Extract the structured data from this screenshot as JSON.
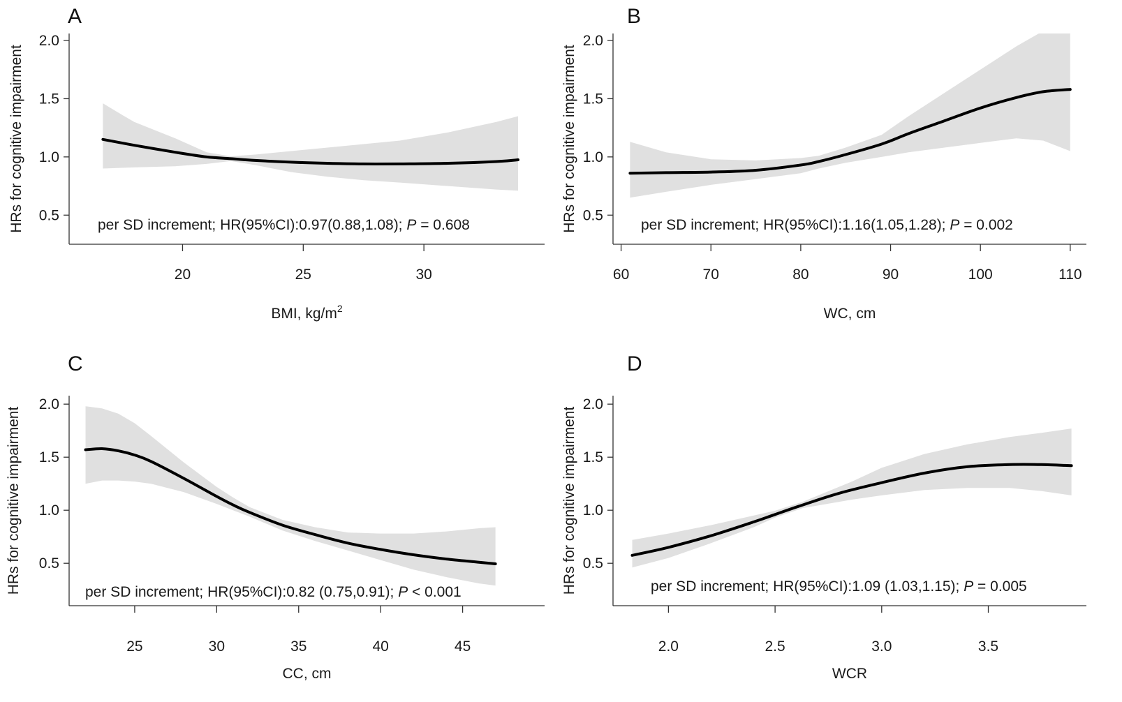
{
  "chart_data": [
    {
      "type": "line",
      "panel": "A",
      "title": "",
      "xlabel": "BMI, kg/m",
      "xlabel_superscript": "2",
      "ylabel": "HRs for cognitive impairment",
      "xticks": [
        20,
        25,
        30
      ],
      "yticks": [
        0.5,
        1.0,
        1.5,
        2.0
      ],
      "xlim": [
        15.3,
        35.0
      ],
      "ylim": [
        0.25,
        2.06
      ],
      "grid": false,
      "annotation": {
        "prefix": "per SD increment; HR(95%CI):0.97(0.88,1.08); ",
        "p_label": "P",
        "p_value": " = 0.608"
      },
      "series": [
        {
          "name": "HR",
          "x": [
            16.7,
            18,
            19.7,
            21,
            22,
            23,
            24.5,
            26,
            27.5,
            29,
            31,
            33,
            33.9
          ],
          "values": [
            1.15,
            1.1,
            1.04,
            1.0,
            0.985,
            0.97,
            0.955,
            0.945,
            0.94,
            0.94,
            0.945,
            0.96,
            0.975
          ]
        },
        {
          "name": "CI lower",
          "x": [
            16.7,
            18,
            19.7,
            21,
            22,
            23,
            24.5,
            26,
            27.5,
            29,
            31,
            33,
            33.9
          ],
          "values": [
            0.9,
            0.91,
            0.92,
            0.94,
            0.965,
            0.93,
            0.87,
            0.83,
            0.8,
            0.78,
            0.75,
            0.72,
            0.71
          ]
        },
        {
          "name": "CI upper",
          "x": [
            16.7,
            17.5,
            18,
            19.7,
            21,
            22,
            23,
            24.5,
            26,
            27.5,
            29,
            31,
            33,
            33.9
          ],
          "values": [
            1.46,
            1.36,
            1.3,
            1.16,
            1.04,
            1.005,
            1.02,
            1.05,
            1.08,
            1.11,
            1.14,
            1.21,
            1.3,
            1.35
          ]
        }
      ]
    },
    {
      "type": "line",
      "panel": "B",
      "title": "",
      "xlabel": "WC, cm",
      "ylabel": "HRs for cognitive impairment",
      "xticks": [
        60,
        70,
        80,
        90,
        100,
        110
      ],
      "yticks": [
        0.5,
        1.0,
        1.5,
        2.0
      ],
      "xlim": [
        59.1,
        111.8
      ],
      "ylim": [
        0.25,
        2.06
      ],
      "grid": false,
      "annotation": {
        "prefix": "per SD increment; HR(95%CI):1.16(1.05,1.28); ",
        "p_label": "P",
        "p_value": " = 0.002"
      },
      "series": [
        {
          "name": "HR",
          "x": [
            61,
            65,
            70,
            75,
            80,
            82,
            85,
            89,
            92,
            96,
            100,
            104,
            107,
            110
          ],
          "values": [
            0.86,
            0.865,
            0.87,
            0.885,
            0.93,
            0.96,
            1.02,
            1.11,
            1.2,
            1.31,
            1.42,
            1.51,
            1.56,
            1.58
          ]
        },
        {
          "name": "CI lower",
          "x": [
            61,
            65,
            70,
            75,
            80,
            82,
            85,
            89,
            92,
            96,
            100,
            104,
            107,
            110
          ],
          "values": [
            0.65,
            0.7,
            0.76,
            0.81,
            0.86,
            0.9,
            0.95,
            1.0,
            1.04,
            1.08,
            1.12,
            1.16,
            1.14,
            1.05
          ]
        },
        {
          "name": "CI upper",
          "x": [
            61,
            65,
            70,
            75,
            80,
            82,
            85,
            89,
            92,
            96,
            100,
            104,
            106.5,
            110
          ],
          "values": [
            1.13,
            1.04,
            0.98,
            0.97,
            0.99,
            1.01,
            1.08,
            1.19,
            1.35,
            1.55,
            1.75,
            1.95,
            2.06,
            2.06
          ]
        }
      ]
    },
    {
      "type": "line",
      "panel": "C",
      "title": "",
      "xlabel": "CC, cm",
      "ylabel": "HRs for cognitive impairment",
      "xticks": [
        25,
        30,
        35,
        40,
        45
      ],
      "yticks": [
        0.5,
        1.0,
        1.5,
        2.0
      ],
      "xlim": [
        21.0,
        50.0
      ],
      "ylim": [
        0.1,
        2.08
      ],
      "grid": false,
      "annotation": {
        "prefix": "per SD increment; HR(95%CI):0.82 (0.75,0.91); ",
        "p_label": "P",
        "p_value": " < 0.001"
      },
      "series": [
        {
          "name": "HR",
          "x": [
            22,
            23,
            24,
            25,
            26,
            28,
            30,
            31,
            32,
            34,
            36,
            38,
            40,
            42,
            44,
            46,
            47
          ],
          "values": [
            1.57,
            1.58,
            1.56,
            1.52,
            1.46,
            1.3,
            1.13,
            1.05,
            0.98,
            0.86,
            0.77,
            0.69,
            0.63,
            0.58,
            0.54,
            0.51,
            0.495
          ]
        },
        {
          "name": "CI lower",
          "x": [
            22,
            23,
            24,
            25,
            26,
            28,
            30,
            31,
            32,
            34,
            36,
            38,
            40,
            42,
            44,
            46,
            47
          ],
          "values": [
            1.25,
            1.28,
            1.28,
            1.27,
            1.25,
            1.17,
            1.06,
            1.0,
            0.94,
            0.81,
            0.71,
            0.62,
            0.53,
            0.44,
            0.37,
            0.31,
            0.29
          ]
        },
        {
          "name": "CI upper",
          "x": [
            22,
            23,
            24,
            25,
            26,
            28,
            30,
            31,
            32,
            34,
            36,
            38,
            40,
            42,
            44,
            46,
            47
          ],
          "values": [
            1.98,
            1.96,
            1.91,
            1.82,
            1.7,
            1.45,
            1.22,
            1.12,
            1.03,
            0.91,
            0.84,
            0.79,
            0.78,
            0.78,
            0.8,
            0.83,
            0.84
          ]
        }
      ]
    },
    {
      "type": "line",
      "panel": "D",
      "title": "",
      "xlabel": "WCR",
      "ylabel": "HRs for cognitive impairment",
      "xticks": [
        2.0,
        2.5,
        3.0,
        3.5
      ],
      "yticks": [
        0.5,
        1.0,
        1.5,
        2.0
      ],
      "xlim": [
        1.74,
        3.96
      ],
      "ylim": [
        0.1,
        2.08
      ],
      "grid": false,
      "annotation": {
        "prefix": "per SD increment; HR(95%CI):1.09 (1.03,1.15); ",
        "p_label": "P",
        "p_value": " = 0.005"
      },
      "series": [
        {
          "name": "HR",
          "x": [
            1.83,
            2.0,
            2.2,
            2.4,
            2.5,
            2.63,
            2.8,
            3.0,
            3.2,
            3.4,
            3.6,
            3.75,
            3.89
          ],
          "values": [
            0.575,
            0.65,
            0.76,
            0.89,
            0.96,
            1.05,
            1.16,
            1.26,
            1.35,
            1.41,
            1.43,
            1.43,
            1.42
          ]
        },
        {
          "name": "CI lower",
          "x": [
            1.83,
            2.0,
            2.2,
            2.4,
            2.5,
            2.63,
            2.86,
            3.0,
            3.2,
            3.4,
            3.6,
            3.75,
            3.89
          ],
          "values": [
            0.46,
            0.55,
            0.69,
            0.84,
            0.93,
            1.02,
            1.1,
            1.14,
            1.19,
            1.21,
            1.21,
            1.18,
            1.14
          ]
        },
        {
          "name": "CI upper",
          "x": [
            1.83,
            2.0,
            2.2,
            2.4,
            2.5,
            2.63,
            2.86,
            3.0,
            3.2,
            3.4,
            3.6,
            3.75,
            3.89
          ],
          "values": [
            0.72,
            0.78,
            0.86,
            0.95,
            0.995,
            1.08,
            1.27,
            1.4,
            1.53,
            1.62,
            1.69,
            1.73,
            1.77
          ]
        }
      ]
    }
  ]
}
